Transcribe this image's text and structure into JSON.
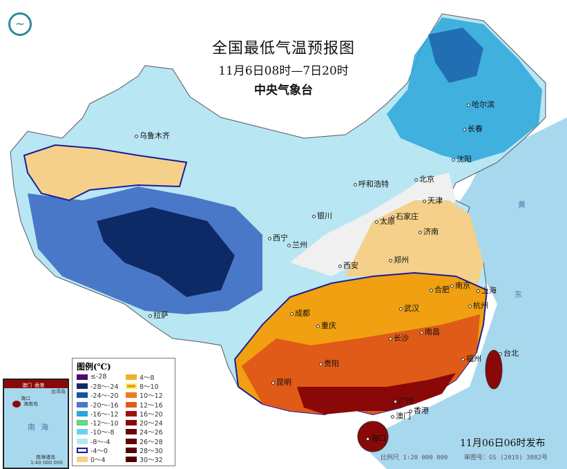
{
  "title": "全国最低气温预报图",
  "period": "11月6日08时—7日20时",
  "issuer": "中央气象台",
  "published": "11月06日06时发布",
  "scale": "比例尺 1:20 000 000",
  "review_number": "审图号：GS (2019) 3082号",
  "logo_icon": "cma-logo",
  "legend": {
    "title": "图例(℃)",
    "items": [
      {
        "label": "≤-28",
        "color": "#4b0a6e"
      },
      {
        "label": "-28～-24",
        "color": "#0d2a66"
      },
      {
        "label": "-24～-20",
        "color": "#1552a0"
      },
      {
        "label": "-20～-16",
        "color": "#4a78c8"
      },
      {
        "label": "-16～-12",
        "color": "#2aa6dc"
      },
      {
        "label": "-12～-10",
        "color": "#3ee8b0",
        "border": "#7cc85a"
      },
      {
        "label": "-10～-8",
        "color": "#6cd0f0"
      },
      {
        "label": "-8～-4",
        "color": "#b8e6f2"
      },
      {
        "label": "-4～0",
        "color": "#f0f0f0",
        "border": "#1a1a9a"
      },
      {
        "label": "0～4",
        "color": "#f5d08a"
      },
      {
        "label": "4～8",
        "color": "#f0b030"
      },
      {
        "label": "8～10",
        "color": "#f0a010",
        "border": "#f5f060"
      },
      {
        "label": "10～12",
        "color": "#f07a20"
      },
      {
        "label": "12～16",
        "color": "#e05a18"
      },
      {
        "label": "16～20",
        "color": "#a01010"
      },
      {
        "label": "20～24",
        "color": "#8a0808"
      },
      {
        "label": "24～26",
        "color": "#6a0404"
      },
      {
        "label": "26～28",
        "color": "#600404"
      },
      {
        "label": "28～30",
        "color": "#580202"
      },
      {
        "label": "30～32",
        "color": "#500000"
      }
    ]
  },
  "cities": [
    "乌鲁木齐",
    "哈尔滨",
    "长春",
    "沈阳",
    "北京",
    "天津",
    "呼和浩特",
    "石家庄",
    "太原",
    "济南",
    "银川",
    "西宁",
    "兰州",
    "西安",
    "郑州",
    "合肥",
    "南京",
    "上海",
    "武汉",
    "杭州",
    "成都",
    "重庆",
    "拉萨",
    "长沙",
    "南昌",
    "贵阳",
    "福州",
    "台北",
    "昆明",
    "广州",
    "香港",
    "澳门",
    "海口"
  ],
  "inset": {
    "labels": [
      "澳门",
      "香港",
      "台湾岛",
      "海口",
      "海南岛",
      "南海",
      "南海诸岛"
    ],
    "scale": "1:40 000 000"
  },
  "sea_labels": [
    "南",
    "海",
    "黄",
    "海",
    "东",
    "海"
  ]
}
